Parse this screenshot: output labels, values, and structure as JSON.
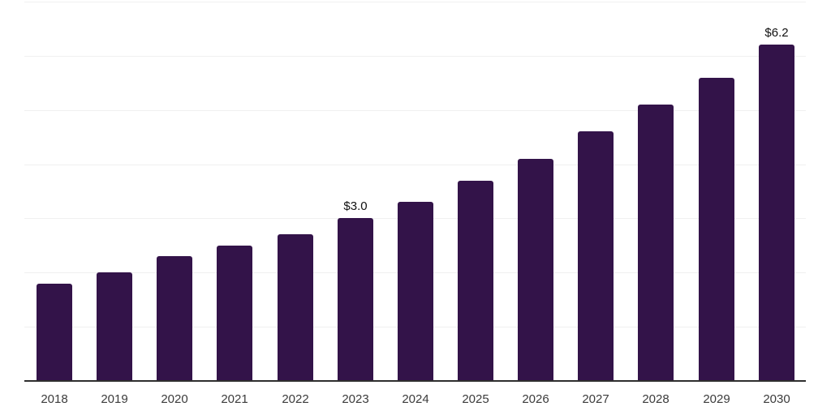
{
  "chart_data": {
    "type": "bar",
    "title": "",
    "xlabel": "",
    "ylabel": "",
    "categories": [
      "2018",
      "2019",
      "2020",
      "2021",
      "2022",
      "2023",
      "2024",
      "2025",
      "2026",
      "2027",
      "2028",
      "2029",
      "2030"
    ],
    "values": [
      1.8,
      2.0,
      2.3,
      2.5,
      2.7,
      3.0,
      3.3,
      3.7,
      4.1,
      4.6,
      5.1,
      5.6,
      6.2
    ],
    "data_labels": {
      "2023": "$3.0",
      "2030": "$6.2"
    },
    "ylim": [
      0,
      7
    ],
    "gridline_values": [
      1,
      2,
      3,
      4,
      5,
      6,
      7
    ],
    "grid": "horizontal",
    "legend": "none",
    "y_axis_tick_labels": "none",
    "colors": {
      "bar": "#331349",
      "axis_line": "#2e2e2e",
      "gridline": "#f0f0f0",
      "tick_label": "#3b3b3b",
      "data_label": "#111111",
      "background": "#ffffff"
    }
  }
}
